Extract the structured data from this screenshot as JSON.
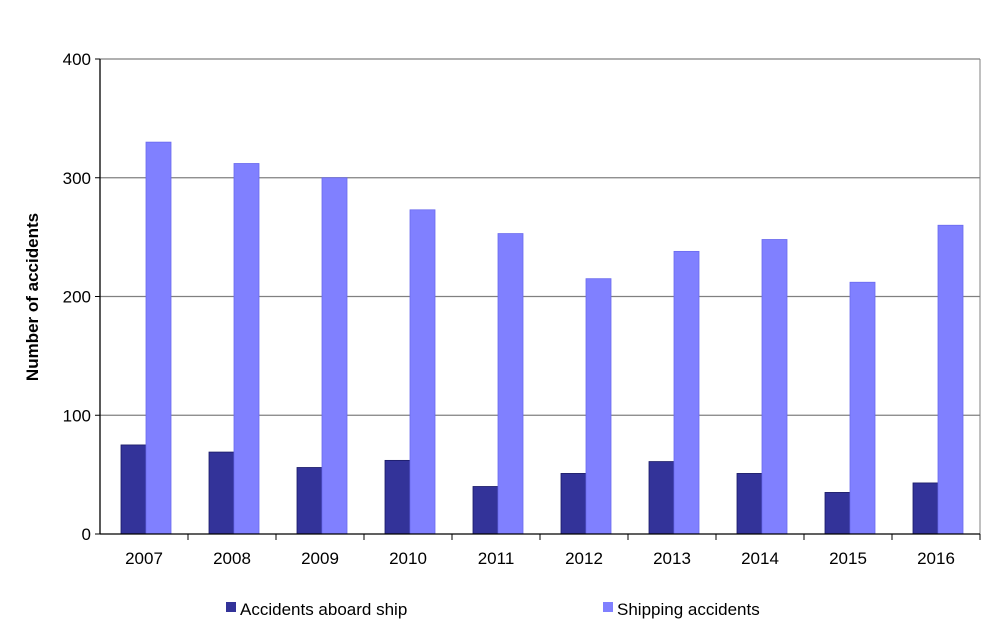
{
  "chart_data": {
    "type": "bar",
    "title": "",
    "xlabel": "",
    "ylabel": "Number of accidents",
    "ylim": [
      0,
      400
    ],
    "yticks": [
      0,
      100,
      200,
      300,
      400
    ],
    "grid": true,
    "legend_position": "bottom",
    "categories": [
      "2007",
      "2008",
      "2009",
      "2010",
      "2011",
      "2012",
      "2013",
      "2014",
      "2015",
      "2016"
    ],
    "series": [
      {
        "name": "Accidents aboard ship",
        "color": "#333399",
        "values": [
          75,
          69,
          56,
          62,
          40,
          51,
          61,
          51,
          35,
          43
        ]
      },
      {
        "name": "Shipping accidents",
        "color": "#8080ff",
        "values": [
          330,
          312,
          300,
          273,
          253,
          215,
          238,
          248,
          212,
          260
        ]
      }
    ]
  }
}
